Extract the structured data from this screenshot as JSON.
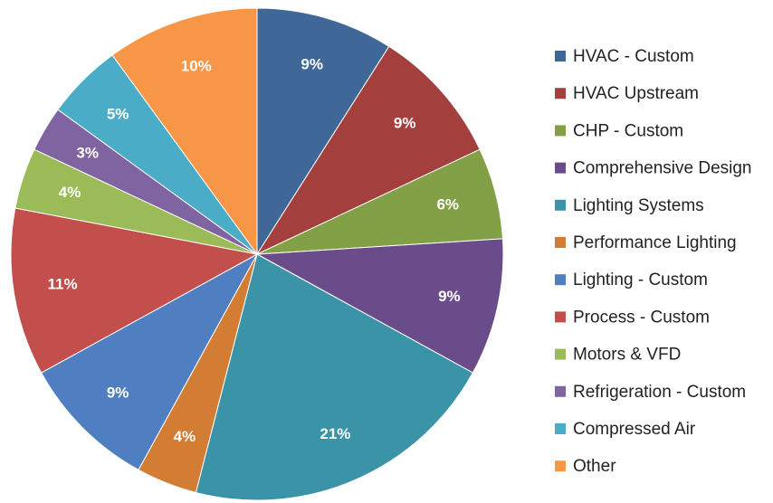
{
  "chart_data": {
    "type": "pie",
    "categories": [
      "HVAC - Custom",
      "HVAC Upstream",
      "CHP - Custom",
      "Comprehensive Design",
      "Lighting Systems",
      "Performance Lighting",
      "Lighting - Custom",
      "Process - Custom",
      "Motors & VFD",
      "Refrigeration - Custom",
      "Compressed Air",
      "Other"
    ],
    "values": [
      9,
      9,
      6,
      9,
      21,
      4,
      9,
      11,
      4,
      3,
      5,
      10
    ],
    "value_labels": [
      "9%",
      "9%",
      "6%",
      "9%",
      "21%",
      "4%",
      "9%",
      "11%",
      "4%",
      "3%",
      "5%",
      "10%"
    ],
    "colors": [
      "#3f6797",
      "#a33f3d",
      "#82a046",
      "#6b4c8b",
      "#3b93a8",
      "#d27d33",
      "#4f7fc0",
      "#c24f4c",
      "#9bbb59",
      "#8064a2",
      "#4aacc6",
      "#f79646"
    ],
    "legend": "right"
  }
}
